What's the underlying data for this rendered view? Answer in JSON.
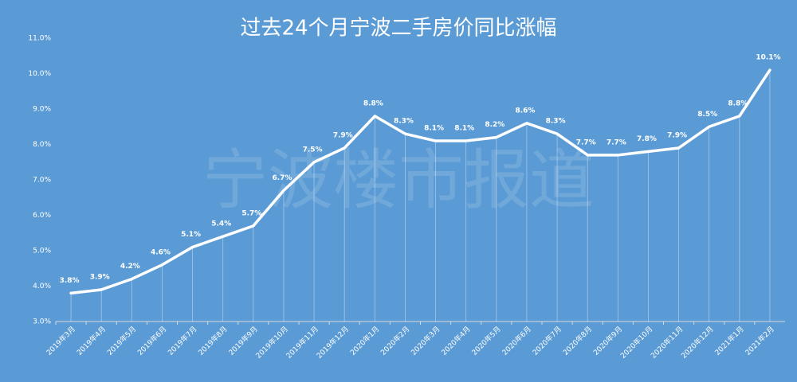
{
  "chart_data": {
    "type": "line",
    "title": "过去24个月宁波二手房价同比涨幅",
    "watermark": "宁波楼市报道",
    "categories": [
      "2019年3月",
      "2019年4月",
      "2019年5月",
      "2019年6月",
      "2019年7月",
      "2019年8月",
      "2019年9月",
      "2019年10月",
      "2019年11月",
      "2019年12月",
      "2020年1月",
      "2020年2月",
      "2020年3月",
      "2020年4月",
      "2020年5月",
      "2020年6月",
      "2020年7月",
      "2020年8月",
      "2020年9月",
      "2020年10月",
      "2020年11月",
      "2020年12月",
      "2021年1月",
      "2021年2月"
    ],
    "values": [
      3.8,
      3.9,
      4.2,
      4.6,
      5.1,
      5.4,
      5.7,
      6.7,
      7.5,
      7.9,
      8.8,
      8.3,
      8.1,
      8.1,
      8.2,
      8.6,
      8.3,
      7.7,
      7.7,
      7.8,
      7.9,
      8.5,
      8.8,
      10.1
    ],
    "value_labels": [
      "3.8%",
      "3.9%",
      "4.2%",
      "4.6%",
      "5.1%",
      "5.4%",
      "5.7%",
      "6.7%",
      "7.5%",
      "7.9%",
      "8.8%",
      "8.3%",
      "8.1%",
      "8.1%",
      "8.2%",
      "8.6%",
      "8.3%",
      "7.7%",
      "7.7%",
      "7.8%",
      "7.9%",
      "8.5%",
      "8.8%",
      "10.1%"
    ],
    "color": "#ffffff",
    "ylim": [
      3,
      11
    ],
    "yticks": [
      {
        "value": 3,
        "label": "3.0%"
      },
      {
        "value": 4,
        "label": "4.0%"
      },
      {
        "value": 5,
        "label": "5.0%"
      },
      {
        "value": 6,
        "label": "6.0%"
      },
      {
        "value": 7,
        "label": "7.0%"
      },
      {
        "value": 8,
        "label": "8.0%"
      },
      {
        "value": 9,
        "label": "9.0%"
      },
      {
        "value": 10,
        "label": "10.0%"
      },
      {
        "value": 11,
        "label": "11.0%"
      }
    ],
    "grid": false,
    "drop_lines": true
  }
}
